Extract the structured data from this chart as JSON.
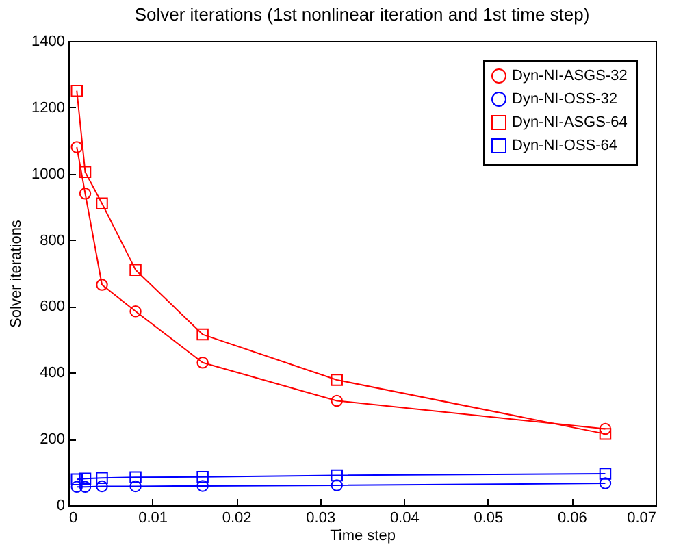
{
  "chart_data": {
    "type": "line",
    "title": "Solver iterations (1st nonlinear iteration and 1st time step)",
    "xlabel": "Time step",
    "ylabel": "Solver iterations",
    "x": [
      0.001,
      0.002,
      0.004,
      0.008,
      0.016,
      0.032,
      0.064
    ],
    "series": [
      {
        "name": "Dyn-NI-ASGS-32",
        "color": "#ff0000",
        "marker": "circle",
        "values": [
          1080,
          940,
          665,
          585,
          430,
          315,
          230
        ]
      },
      {
        "name": "Dyn-NI-OSS-32",
        "color": "#0000ff",
        "marker": "circle",
        "values": [
          55,
          55,
          57,
          57,
          58,
          60,
          66
        ]
      },
      {
        "name": "Dyn-NI-ASGS-64",
        "color": "#ff0000",
        "marker": "square",
        "values": [
          1250,
          1005,
          910,
          710,
          515,
          378,
          215
        ]
      },
      {
        "name": "Dyn-NI-OSS-64",
        "color": "#0000ff",
        "marker": "square",
        "values": [
          78,
          80,
          82,
          84,
          85,
          90,
          95
        ]
      }
    ],
    "xlim": [
      0,
      0.07
    ],
    "xticks": [
      0,
      0.01,
      0.02,
      0.03,
      0.04,
      0.05,
      0.06,
      0.07
    ],
    "ylim": [
      0,
      1400
    ],
    "yticks": [
      0,
      200,
      400,
      600,
      800,
      1000,
      1200,
      1400
    ],
    "grid": false,
    "legend": "top right",
    "line_style": "solid"
  }
}
